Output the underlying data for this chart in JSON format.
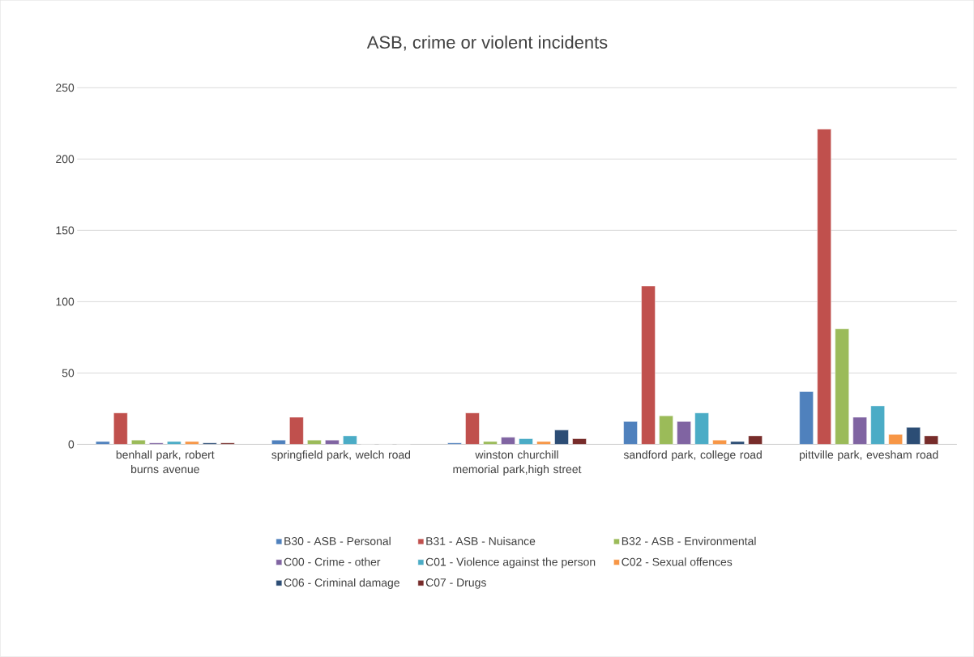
{
  "chart_data": {
    "type": "bar",
    "title": "ASB, crime or violent incidents",
    "categories": [
      "benhall park, robert burns avenue",
      "springfield park, welch road",
      "winston churchill memorial park,high street",
      "sandford park, college road",
      "pittville park, evesham road"
    ],
    "series": [
      {
        "name": "B30 - ASB - Personal",
        "color": "#4f81bd",
        "values": [
          2,
          3,
          1,
          16,
          37
        ]
      },
      {
        "name": "B31 - ASB - Nuisance",
        "color": "#c0504d",
        "values": [
          22,
          19,
          22,
          111,
          221
        ]
      },
      {
        "name": "B32 - ASB - Environmental",
        "color": "#9bbb59",
        "values": [
          3,
          3,
          2,
          20,
          81
        ]
      },
      {
        "name": "C00 - Crime - other",
        "color": "#8064a2",
        "values": [
          1,
          3,
          5,
          16,
          19
        ]
      },
      {
        "name": "C01 - Violence against the person",
        "color": "#4bacc6",
        "values": [
          2,
          6,
          4,
          22,
          27
        ]
      },
      {
        "name": "C02 - Sexual offences",
        "color": "#f79646",
        "values": [
          2,
          0,
          2,
          3,
          7
        ]
      },
      {
        "name": "C06 - Criminal damage",
        "color": "#2c4d75",
        "values": [
          1,
          0,
          10,
          2,
          12
        ]
      },
      {
        "name": "C07 - Drugs",
        "color": "#772c2a",
        "values": [
          1,
          0,
          4,
          6,
          6
        ]
      }
    ],
    "ylim": [
      0,
      250
    ],
    "yticks": [
      0,
      50,
      100,
      150,
      200,
      250
    ],
    "grid": "y",
    "legend": "bottom"
  }
}
